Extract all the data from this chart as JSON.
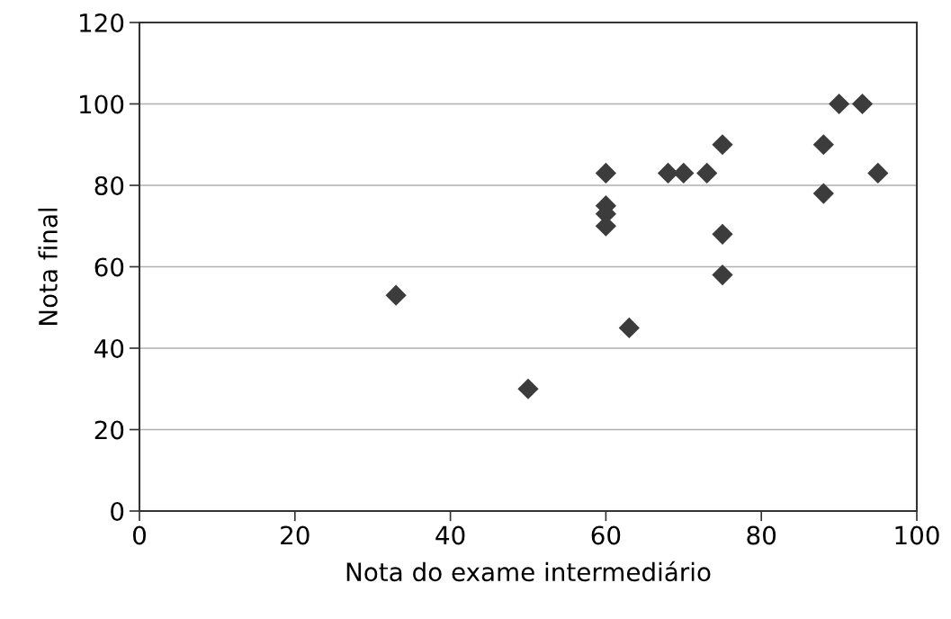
{
  "chart_data": {
    "type": "scatter",
    "xlabel": "Nota do exame intermediário",
    "ylabel": "Nota final",
    "x": [
      33,
      50,
      60,
      60,
      60,
      60,
      63,
      68,
      70,
      73,
      75,
      75,
      75,
      88,
      88,
      90,
      93,
      95
    ],
    "series": [
      {
        "color": "#3c3c3c",
        "values": [
          53,
          30,
          83,
          75,
          73,
          70,
          45,
          83,
          83,
          83,
          90,
          68,
          58,
          90,
          78,
          100,
          100,
          83
        ]
      }
    ],
    "xlim": [
      0,
      100
    ],
    "xticks": [
      0,
      20,
      40,
      60,
      80,
      100
    ],
    "ylim": [
      0,
      120
    ],
    "yticks": [
      0,
      20,
      40,
      60,
      80,
      100,
      120
    ],
    "grid": "y",
    "marker": "diamond"
  }
}
